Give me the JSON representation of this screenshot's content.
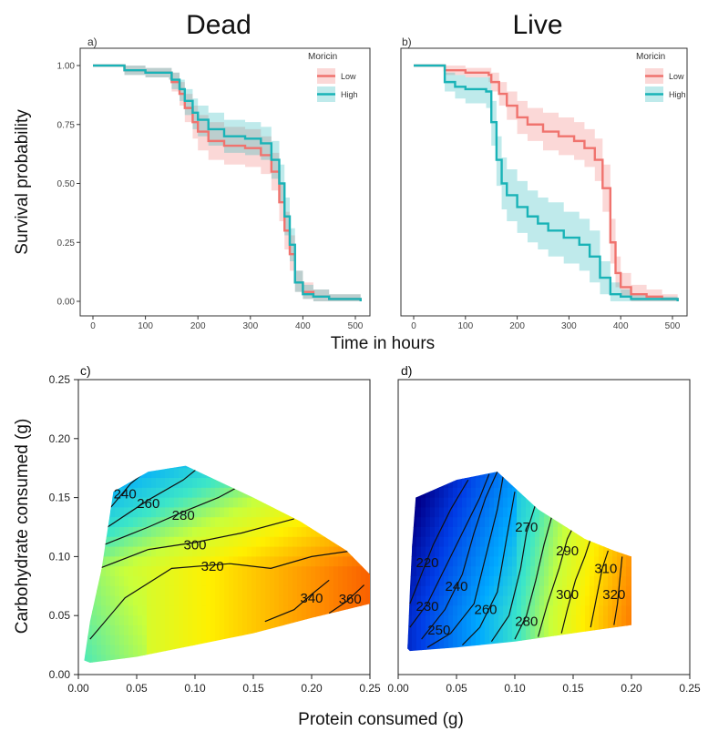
{
  "figure": {
    "title_left": "Dead",
    "title_right": "Live",
    "top_ylabel": "Survival probability",
    "top_xlabel": "Time in hours",
    "bottom_ylabel": "Carbohydrate consumed (g)",
    "bottom_xlabel": "Protein consumed (g)"
  },
  "colors": {
    "low": "#f0736e",
    "high": "#19b3b7",
    "contour_line": "#111111"
  },
  "chart_data": [
    {
      "panel": "a)",
      "type": "line",
      "xlim": [
        0,
        520
      ],
      "ylim": [
        0,
        1
      ],
      "xticks": [
        0,
        100,
        200,
        300,
        400,
        500
      ],
      "yticks": [
        "0.00",
        "0.25",
        "0.50",
        "0.75",
        "1.00"
      ],
      "legend": {
        "title": "Moricin",
        "placement": "top-right"
      },
      "series": [
        {
          "name": "Low",
          "x": [
            0,
            60,
            60,
            100,
            145,
            150,
            165,
            175,
            190,
            200,
            220,
            250,
            290,
            320,
            340,
            355,
            365,
            375,
            385,
            400,
            420,
            450,
            510
          ],
          "y": [
            1.0,
            1.0,
            0.98,
            0.97,
            0.97,
            0.93,
            0.88,
            0.82,
            0.76,
            0.72,
            0.68,
            0.66,
            0.65,
            0.62,
            0.55,
            0.42,
            0.3,
            0.2,
            0.08,
            0.04,
            0.02,
            0.01,
            0.0
          ],
          "lower": [
            1.0,
            1.0,
            0.96,
            0.95,
            0.94,
            0.89,
            0.83,
            0.76,
            0.69,
            0.64,
            0.6,
            0.58,
            0.57,
            0.54,
            0.47,
            0.34,
            0.22,
            0.13,
            0.04,
            0.01,
            0.0,
            0.0,
            0.0
          ],
          "upper": [
            1.0,
            1.0,
            1.0,
            0.99,
            0.99,
            0.97,
            0.93,
            0.88,
            0.83,
            0.79,
            0.76,
            0.74,
            0.73,
            0.7,
            0.63,
            0.5,
            0.38,
            0.28,
            0.13,
            0.08,
            0.05,
            0.03,
            0.01
          ]
        },
        {
          "name": "High",
          "x": [
            0,
            60,
            60,
            100,
            145,
            150,
            165,
            175,
            190,
            200,
            220,
            250,
            290,
            320,
            340,
            355,
            365,
            375,
            385,
            400,
            420,
            450,
            510
          ],
          "y": [
            1.0,
            1.0,
            0.98,
            0.97,
            0.97,
            0.94,
            0.9,
            0.85,
            0.8,
            0.77,
            0.73,
            0.7,
            0.69,
            0.67,
            0.6,
            0.5,
            0.36,
            0.24,
            0.08,
            0.03,
            0.02,
            0.01,
            0.0
          ],
          "lower": [
            1.0,
            1.0,
            0.96,
            0.95,
            0.94,
            0.9,
            0.85,
            0.79,
            0.73,
            0.7,
            0.66,
            0.63,
            0.62,
            0.6,
            0.52,
            0.42,
            0.28,
            0.17,
            0.04,
            0.01,
            0.0,
            0.0,
            0.0
          ],
          "upper": [
            1.0,
            1.0,
            1.0,
            0.99,
            0.99,
            0.97,
            0.94,
            0.9,
            0.86,
            0.83,
            0.8,
            0.77,
            0.76,
            0.74,
            0.68,
            0.58,
            0.44,
            0.31,
            0.13,
            0.07,
            0.05,
            0.03,
            0.01
          ]
        }
      ]
    },
    {
      "panel": "b)",
      "type": "line",
      "xlim": [
        0,
        520
      ],
      "ylim": [
        0,
        1
      ],
      "xticks": [
        0,
        100,
        200,
        300,
        400,
        500
      ],
      "yticks": [
        "0.00",
        "0.25",
        "0.50",
        "0.75",
        "1.00"
      ],
      "legend": {
        "title": "Moricin",
        "placement": "top-right"
      },
      "series": [
        {
          "name": "Low",
          "x": [
            0,
            60,
            60,
            100,
            145,
            150,
            165,
            180,
            200,
            220,
            250,
            280,
            310,
            330,
            350,
            365,
            380,
            390,
            400,
            420,
            450,
            480,
            510
          ],
          "y": [
            1.0,
            1.0,
            0.98,
            0.97,
            0.96,
            0.93,
            0.88,
            0.83,
            0.78,
            0.75,
            0.72,
            0.7,
            0.68,
            0.65,
            0.6,
            0.48,
            0.25,
            0.12,
            0.06,
            0.03,
            0.02,
            0.01,
            0.0
          ],
          "lower": [
            1.0,
            1.0,
            0.96,
            0.95,
            0.93,
            0.89,
            0.83,
            0.77,
            0.71,
            0.68,
            0.64,
            0.62,
            0.6,
            0.57,
            0.51,
            0.38,
            0.16,
            0.06,
            0.02,
            0.0,
            0.0,
            0.0,
            0.0
          ],
          "upper": [
            1.0,
            1.0,
            1.0,
            0.99,
            0.99,
            0.97,
            0.93,
            0.89,
            0.85,
            0.82,
            0.8,
            0.78,
            0.76,
            0.73,
            0.69,
            0.58,
            0.35,
            0.19,
            0.12,
            0.07,
            0.05,
            0.03,
            0.01
          ]
        },
        {
          "name": "High",
          "x": [
            0,
            60,
            60,
            80,
            100,
            140,
            150,
            160,
            170,
            180,
            200,
            220,
            240,
            260,
            290,
            320,
            340,
            360,
            380,
            400,
            420,
            450,
            510
          ],
          "y": [
            1.0,
            1.0,
            0.93,
            0.91,
            0.9,
            0.89,
            0.76,
            0.6,
            0.5,
            0.45,
            0.4,
            0.36,
            0.33,
            0.3,
            0.27,
            0.24,
            0.19,
            0.1,
            0.03,
            0.02,
            0.01,
            0.01,
            0.0
          ],
          "lower": [
            1.0,
            1.0,
            0.89,
            0.86,
            0.84,
            0.82,
            0.66,
            0.49,
            0.39,
            0.34,
            0.29,
            0.25,
            0.22,
            0.19,
            0.16,
            0.13,
            0.08,
            0.03,
            0.0,
            0.0,
            0.0,
            0.0,
            0.0
          ],
          "upper": [
            1.0,
            1.0,
            0.97,
            0.96,
            0.95,
            0.95,
            0.85,
            0.7,
            0.61,
            0.56,
            0.51,
            0.47,
            0.44,
            0.42,
            0.38,
            0.35,
            0.3,
            0.17,
            0.08,
            0.05,
            0.03,
            0.02,
            0.01
          ]
        }
      ]
    },
    {
      "panel": "c)",
      "type": "heatmap",
      "xlim": [
        0,
        0.25
      ],
      "ylim": [
        0,
        0.25
      ],
      "xticks": [
        "0.00",
        "0.05",
        "0.10",
        "0.15",
        "0.20",
        "0.25"
      ],
      "yticks": [
        "0.00",
        "0.05",
        "0.10",
        "0.15",
        "0.20",
        "0.25"
      ],
      "color_range": [
        220,
        370
      ],
      "region": [
        [
          0.005,
          0.012
        ],
        [
          0.01,
          0.045
        ],
        [
          0.02,
          0.09
        ],
        [
          0.03,
          0.155
        ],
        [
          0.06,
          0.172
        ],
        [
          0.092,
          0.177
        ],
        [
          0.15,
          0.15
        ],
        [
          0.19,
          0.13
        ],
        [
          0.23,
          0.105
        ],
        [
          0.25,
          0.085
        ],
        [
          0.25,
          0.06
        ],
        [
          0.2,
          0.048
        ],
        [
          0.15,
          0.035
        ],
        [
          0.1,
          0.025
        ],
        [
          0.05,
          0.015
        ],
        [
          0.01,
          0.01
        ]
      ],
      "contours": [
        {
          "label": "240",
          "points": [
            [
              0.028,
              0.142
            ],
            [
              0.045,
              0.162
            ],
            [
              0.065,
              0.178
            ]
          ],
          "label_at": [
            0.04,
            0.153
          ]
        },
        {
          "label": "260",
          "points": [
            [
              0.025,
              0.125
            ],
            [
              0.06,
              0.148
            ],
            [
              0.09,
              0.165
            ],
            [
              0.105,
              0.177
            ]
          ],
          "label_at": [
            0.06,
            0.145
          ]
        },
        {
          "label": "280",
          "points": [
            [
              0.022,
              0.11
            ],
            [
              0.06,
              0.125
            ],
            [
              0.09,
              0.138
            ],
            [
              0.12,
              0.15
            ],
            [
              0.135,
              0.158
            ]
          ],
          "label_at": [
            0.09,
            0.135
          ]
        },
        {
          "label": "300",
          "points": [
            [
              0.018,
              0.09
            ],
            [
              0.06,
              0.106
            ],
            [
              0.1,
              0.112
            ],
            [
              0.14,
              0.12
            ],
            [
              0.185,
              0.132
            ]
          ],
          "label_at": [
            0.1,
            0.11
          ]
        },
        {
          "label": "320",
          "points": [
            [
              0.01,
              0.03
            ],
            [
              0.04,
              0.065
            ],
            [
              0.08,
              0.09
            ],
            [
              0.13,
              0.094
            ],
            [
              0.165,
              0.09
            ],
            [
              0.2,
              0.1
            ],
            [
              0.235,
              0.105
            ]
          ],
          "label_at": [
            0.115,
            0.092
          ]
        },
        {
          "label": "340",
          "points": [
            [
              0.16,
              0.045
            ],
            [
              0.185,
              0.055
            ],
            [
              0.2,
              0.068
            ],
            [
              0.215,
              0.08
            ]
          ],
          "label_at": [
            0.2,
            0.065
          ]
        },
        {
          "label": "360",
          "points": [
            [
              0.215,
              0.052
            ],
            [
              0.23,
              0.062
            ],
            [
              0.245,
              0.076
            ]
          ],
          "label_at": [
            0.233,
            0.064
          ]
        }
      ]
    },
    {
      "panel": "d)",
      "type": "heatmap",
      "xlim": [
        0,
        0.25
      ],
      "ylim": [
        0,
        0.25
      ],
      "xticks": [
        "0.00",
        "0.05",
        "0.10",
        "0.15",
        "0.20",
        "0.25"
      ],
      "yticks": [],
      "color_range": [
        210,
        335
      ],
      "region": [
        [
          0.008,
          0.022
        ],
        [
          0.01,
          0.07
        ],
        [
          0.012,
          0.11
        ],
        [
          0.015,
          0.15
        ],
        [
          0.05,
          0.165
        ],
        [
          0.085,
          0.172
        ],
        [
          0.12,
          0.14
        ],
        [
          0.16,
          0.115
        ],
        [
          0.185,
          0.105
        ],
        [
          0.2,
          0.1
        ],
        [
          0.2,
          0.042
        ],
        [
          0.15,
          0.035
        ],
        [
          0.1,
          0.028
        ],
        [
          0.05,
          0.023
        ],
        [
          0.01,
          0.02
        ]
      ],
      "contours": [
        {
          "label": "220",
          "points": [
            [
              0.01,
              0.06
            ],
            [
              0.02,
              0.085
            ],
            [
              0.03,
              0.11
            ],
            [
              0.045,
              0.14
            ],
            [
              0.06,
              0.165
            ]
          ],
          "label_at": [
            0.025,
            0.095
          ]
        },
        {
          "label": "230",
          "points": [
            [
              0.01,
              0.04
            ],
            [
              0.025,
              0.06
            ],
            [
              0.04,
              0.09
            ],
            [
              0.055,
              0.12
            ],
            [
              0.07,
              0.15
            ],
            [
              0.078,
              0.17
            ]
          ],
          "label_at": [
            0.025,
            0.058
          ]
        },
        {
          "label": "240",
          "points": [
            [
              0.02,
              0.03
            ],
            [
              0.04,
              0.055
            ],
            [
              0.055,
              0.085
            ],
            [
              0.065,
              0.12
            ],
            [
              0.075,
              0.15
            ],
            [
              0.085,
              0.172
            ]
          ],
          "label_at": [
            0.05,
            0.075
          ]
        },
        {
          "label": "250",
          "points": [
            [
              0.025,
              0.023
            ],
            [
              0.045,
              0.035
            ],
            [
              0.065,
              0.06
            ],
            [
              0.075,
              0.1
            ],
            [
              0.085,
              0.14
            ],
            [
              0.09,
              0.168
            ]
          ],
          "label_at": [
            0.035,
            0.038
          ]
        },
        {
          "label": "260",
          "points": [
            [
              0.055,
              0.025
            ],
            [
              0.07,
              0.04
            ],
            [
              0.085,
              0.07
            ],
            [
              0.092,
              0.11
            ],
            [
              0.1,
              0.155
            ]
          ],
          "label_at": [
            0.075,
            0.055
          ]
        },
        {
          "label": "270",
          "points": [
            [
              0.08,
              0.028
            ],
            [
              0.095,
              0.05
            ],
            [
              0.105,
              0.09
            ],
            [
              0.11,
              0.12
            ],
            [
              0.118,
              0.145
            ]
          ],
          "label_at": [
            0.11,
            0.125
          ]
        },
        {
          "label": "280",
          "points": [
            [
              0.1,
              0.03
            ],
            [
              0.11,
              0.05
            ],
            [
              0.118,
              0.08
            ],
            [
              0.125,
              0.11
            ],
            [
              0.132,
              0.135
            ]
          ],
          "label_at": [
            0.11,
            0.045
          ]
        },
        {
          "label": "290",
          "points": [
            [
              0.12,
              0.032
            ],
            [
              0.128,
              0.06
            ],
            [
              0.138,
              0.09
            ],
            [
              0.145,
              0.115
            ],
            [
              0.15,
              0.125
            ]
          ],
          "label_at": [
            0.145,
            0.105
          ]
        },
        {
          "label": "300",
          "points": [
            [
              0.14,
              0.035
            ],
            [
              0.145,
              0.055
            ],
            [
              0.152,
              0.08
            ],
            [
              0.16,
              0.1
            ],
            [
              0.165,
              0.115
            ]
          ],
          "label_at": [
            0.145,
            0.068
          ]
        },
        {
          "label": "310",
          "points": [
            [
              0.165,
              0.04
            ],
            [
              0.17,
              0.065
            ],
            [
              0.175,
              0.09
            ],
            [
              0.18,
              0.105
            ]
          ],
          "label_at": [
            0.178,
            0.09
          ]
        },
        {
          "label": "320",
          "points": [
            [
              0.185,
              0.042
            ],
            [
              0.188,
              0.06
            ],
            [
              0.19,
              0.08
            ],
            [
              0.192,
              0.1
            ]
          ],
          "label_at": [
            0.185,
            0.068
          ]
        }
      ]
    }
  ]
}
